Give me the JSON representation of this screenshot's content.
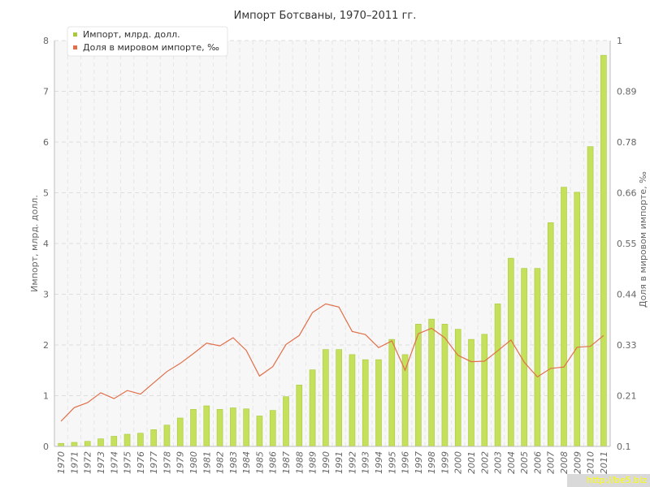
{
  "chart_data": {
    "type": "bar+line",
    "title": "Импорт Ботсваны, 1970–2011 гг.",
    "ylabel_left": "Импорт, млрд. долл.",
    "ylabel_right": "Доля в мировом импорте, ‰",
    "ylim_left": [
      0,
      8
    ],
    "ylim_right": [
      0.1,
      1
    ],
    "yticks_left": [
      "0",
      "1",
      "2",
      "3",
      "4",
      "5",
      "6",
      "7",
      "8"
    ],
    "yticks_right": [
      "0.1",
      "0.21",
      "0.33",
      "0.44",
      "0.55",
      "0.66",
      "0.78",
      "0.89",
      "1"
    ],
    "grid": true,
    "legend_position": "top-left",
    "colors": {
      "bar": "#c5e05a",
      "bar_edge": "#a8c93c",
      "line": "#e0704a"
    },
    "categories": [
      "1970",
      "1971",
      "1972",
      "1973",
      "1974",
      "1975",
      "1976",
      "1977",
      "1978",
      "1979",
      "1980",
      "1981",
      "1982",
      "1983",
      "1984",
      "1985",
      "1986",
      "1987",
      "1988",
      "1989",
      "1990",
      "1991",
      "1992",
      "1993",
      "1994",
      "1995",
      "1996",
      "1997",
      "1998",
      "1999",
      "2000",
      "2001",
      "2002",
      "2003",
      "2004",
      "2005",
      "2006",
      "2007",
      "2008",
      "2009",
      "2010",
      "2011"
    ],
    "series": [
      {
        "name": "Импорт, млрд. долл.",
        "type": "bar",
        "axis": "left",
        "values": [
          0.06,
          0.08,
          0.1,
          0.15,
          0.2,
          0.24,
          0.26,
          0.33,
          0.42,
          0.56,
          0.73,
          0.8,
          0.73,
          0.76,
          0.74,
          0.6,
          0.71,
          0.98,
          1.21,
          1.51,
          1.91,
          1.91,
          1.81,
          1.71,
          1.71,
          2.11,
          1.81,
          2.41,
          2.51,
          2.41,
          2.31,
          2.11,
          2.21,
          2.81,
          3.71,
          3.51,
          3.51,
          4.41,
          5.11,
          5.01,
          5.91,
          7.71
        ]
      },
      {
        "name": "Доля в мировом импорте, ‰",
        "type": "line",
        "axis": "right",
        "values": [
          0.156,
          0.186,
          0.197,
          0.219,
          0.206,
          0.224,
          0.216,
          0.241,
          0.266,
          0.284,
          0.306,
          0.329,
          0.323,
          0.341,
          0.313,
          0.256,
          0.277,
          0.326,
          0.346,
          0.397,
          0.416,
          0.409,
          0.355,
          0.348,
          0.319,
          0.334,
          0.269,
          0.35,
          0.362,
          0.341,
          0.302,
          0.288,
          0.289,
          0.312,
          0.336,
          0.287,
          0.254,
          0.273,
          0.276,
          0.32,
          0.322,
          0.346
        ]
      }
    ]
  },
  "watermark": "http://be5.biz"
}
